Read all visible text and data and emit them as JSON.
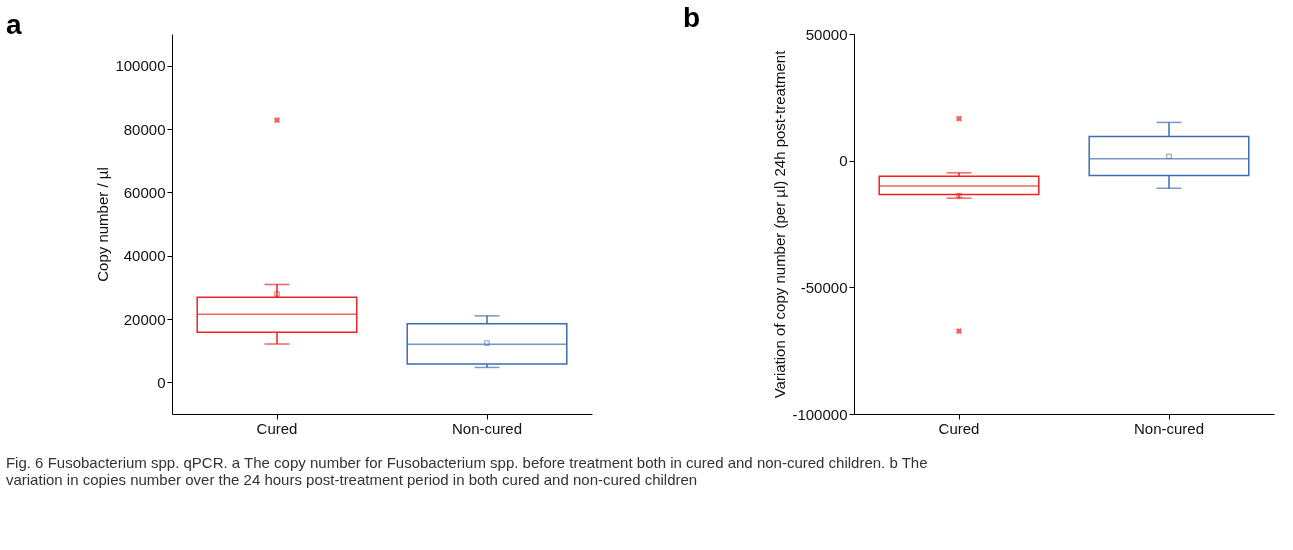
{
  "chart_data": [
    {
      "type": "box",
      "title": "a",
      "ylabel": "Copy number / µl",
      "categories": [
        "Cured",
        "Non-cured"
      ],
      "colors": [
        "#ee2222",
        "#3a6eb0"
      ],
      "ylim": [
        -10000,
        110000
      ],
      "yticks": [
        0,
        20000,
        40000,
        60000,
        80000,
        100000
      ],
      "marker": "square",
      "grid": false,
      "boxes": [
        {
          "low": 12100,
          "q1": 15800,
          "median": 21500,
          "q3": 26900,
          "high": 30900,
          "mean": 27900,
          "outliers": [
            82800
          ]
        },
        {
          "low": 4700,
          "q1": 5800,
          "median": 12000,
          "q3": 18500,
          "high": 21000,
          "mean": 12400
        }
      ]
    },
    {
      "type": "box",
      "title": "b",
      "ylabel": "Variation of copy number (per µl) 24h post-treatment",
      "categories": [
        "Cured",
        "Non-cured"
      ],
      "colors": [
        "#ee2222",
        "#3a6eb0"
      ],
      "ylim": [
        -100000,
        50000
      ],
      "yticks": [
        -100000,
        -50000,
        0,
        50000
      ],
      "marker": "square",
      "grid": false,
      "annotations": [
        "Fig. 6 Fusobacterium spp. qPCR. a The copy number for Fusobacterium spp. before treatment both in cured and non-cured children. b The",
        "variation in copies number over the 24 hours post-treatment period in both cured and non-cured children"
      ],
      "boxes": [
        {
          "low": -14800,
          "q1": -13400,
          "median": -10000,
          "q3": -6200,
          "high": -4800,
          "mean": -13800,
          "outliers": [
            16600,
            -67300
          ]
        },
        {
          "low": -10900,
          "q1": -5900,
          "median": 800,
          "q3": 9500,
          "high": 15100,
          "mean": 1700
        }
      ]
    }
  ]
}
